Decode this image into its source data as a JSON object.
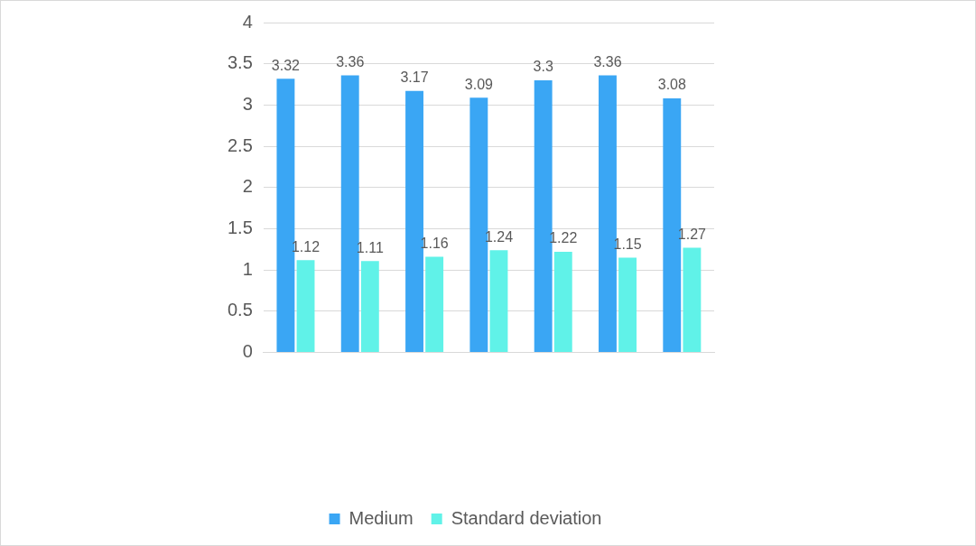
{
  "chart_data": {
    "type": "bar",
    "categories": [
      null,
      null,
      null,
      null,
      null,
      null,
      null
    ],
    "series": [
      {
        "name": "Medium",
        "color": "#3aa6f4",
        "values": [
          3.32,
          3.36,
          3.17,
          3.09,
          3.3,
          3.36,
          3.08
        ]
      },
      {
        "name": "Standard deviation",
        "color": "#60f2e8",
        "values": [
          1.12,
          1.11,
          1.16,
          1.24,
          1.22,
          1.15,
          1.27
        ]
      }
    ],
    "ylim": [
      0,
      4
    ],
    "yticks": [
      0,
      0.5,
      1,
      1.5,
      2,
      2.5,
      3,
      3.5,
      4
    ],
    "grid": "y",
    "legend": "bottom",
    "data_labels": true
  }
}
